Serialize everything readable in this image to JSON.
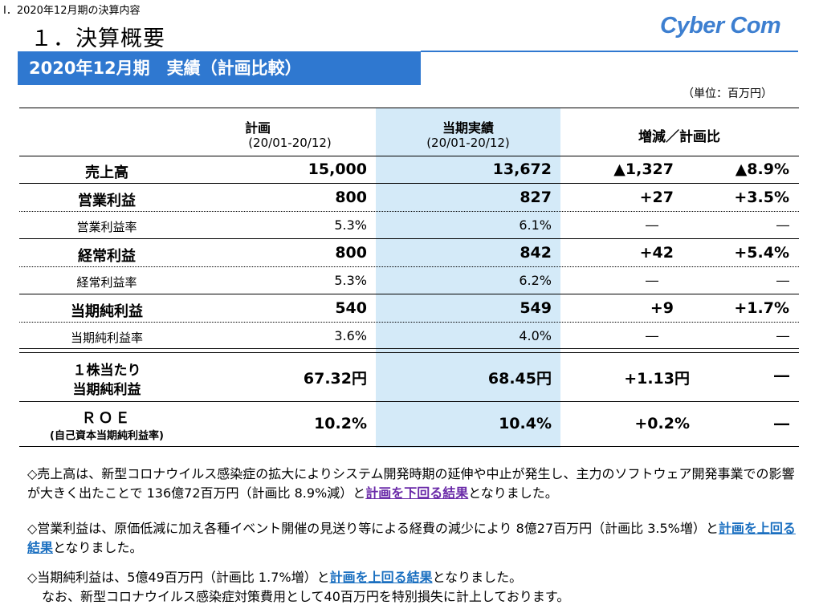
{
  "breadcrumb": "Ⅰ．2020年12月期の決算内容",
  "heading": "１．決算概要",
  "logo": "Cyber Com",
  "banner": "2020年12月期　実績（計画比較）",
  "unit": "（単位：百万円）",
  "table": {
    "col_plan": "計画",
    "col_plan_period": "(20/01-20/12)",
    "col_actual": "当期実績",
    "col_actual_period": "(20/01-20/12)",
    "col_diff": "増減／計画比",
    "rows": [
      {
        "label": "売上高",
        "plan": "15,000",
        "actual": "13,672",
        "diff": "▲1,327",
        "ratio": "▲8.9%"
      },
      {
        "label": "営業利益",
        "plan": "800",
        "actual": "827",
        "diff": "+27",
        "ratio": "+3.5%"
      },
      {
        "label": "営業利益率",
        "plan": "5.3%",
        "actual": "6.1%",
        "diff": "―",
        "ratio": "―"
      },
      {
        "label": "経常利益",
        "plan": "800",
        "actual": "842",
        "diff": "+42",
        "ratio": "+5.4%"
      },
      {
        "label": "経常利益率",
        "plan": "5.3%",
        "actual": "6.2%",
        "diff": "―",
        "ratio": "―"
      },
      {
        "label": "当期純利益",
        "plan": "540",
        "actual": "549",
        "diff": "+9",
        "ratio": "+1.7%"
      },
      {
        "label": "当期純利益率",
        "plan": "3.6%",
        "actual": "4.0%",
        "diff": "―",
        "ratio": "―"
      }
    ],
    "eps": {
      "label1": "１株当たり",
      "label2": "当期純利益",
      "plan": "67.32円",
      "actual": "68.45円",
      "diff": "+1.13円",
      "ratio": "―"
    },
    "roe": {
      "label1": "ＲＯＥ",
      "label2": "(自己資本当期純利益率)",
      "plan": "10.2%",
      "actual": "10.4%",
      "diff": "+0.2%",
      "ratio": "―"
    }
  },
  "notes": {
    "n1_a": "◇売上高は、新型コロナウイルス感染症の拡大によりシステム開発時期の延伸や中止が発生し、主力のソフトウェア開発事業での影響が大きく出たことで 136億72百万円（計画比 8.9%減）と",
    "n1_link": "計画を下回る結果",
    "n1_b": "となりました。",
    "n2_a": "◇営業利益は、原価低減に加え各種イベント開催の見送り等による経費の減少により 8億27百万円（計画比 3.5%増）と",
    "n2_link": "計画を上回る結果",
    "n2_b": "となりました。",
    "n3_a": "◇当期純利益は、5億49百万円（計画比 1.7%増）と",
    "n3_link": "計画を上回る結果",
    "n3_b": "となりました。",
    "n3_c": "なお、新型コロナウイルス感染症対策費用として40百万円を特別損失に計上しております。"
  }
}
